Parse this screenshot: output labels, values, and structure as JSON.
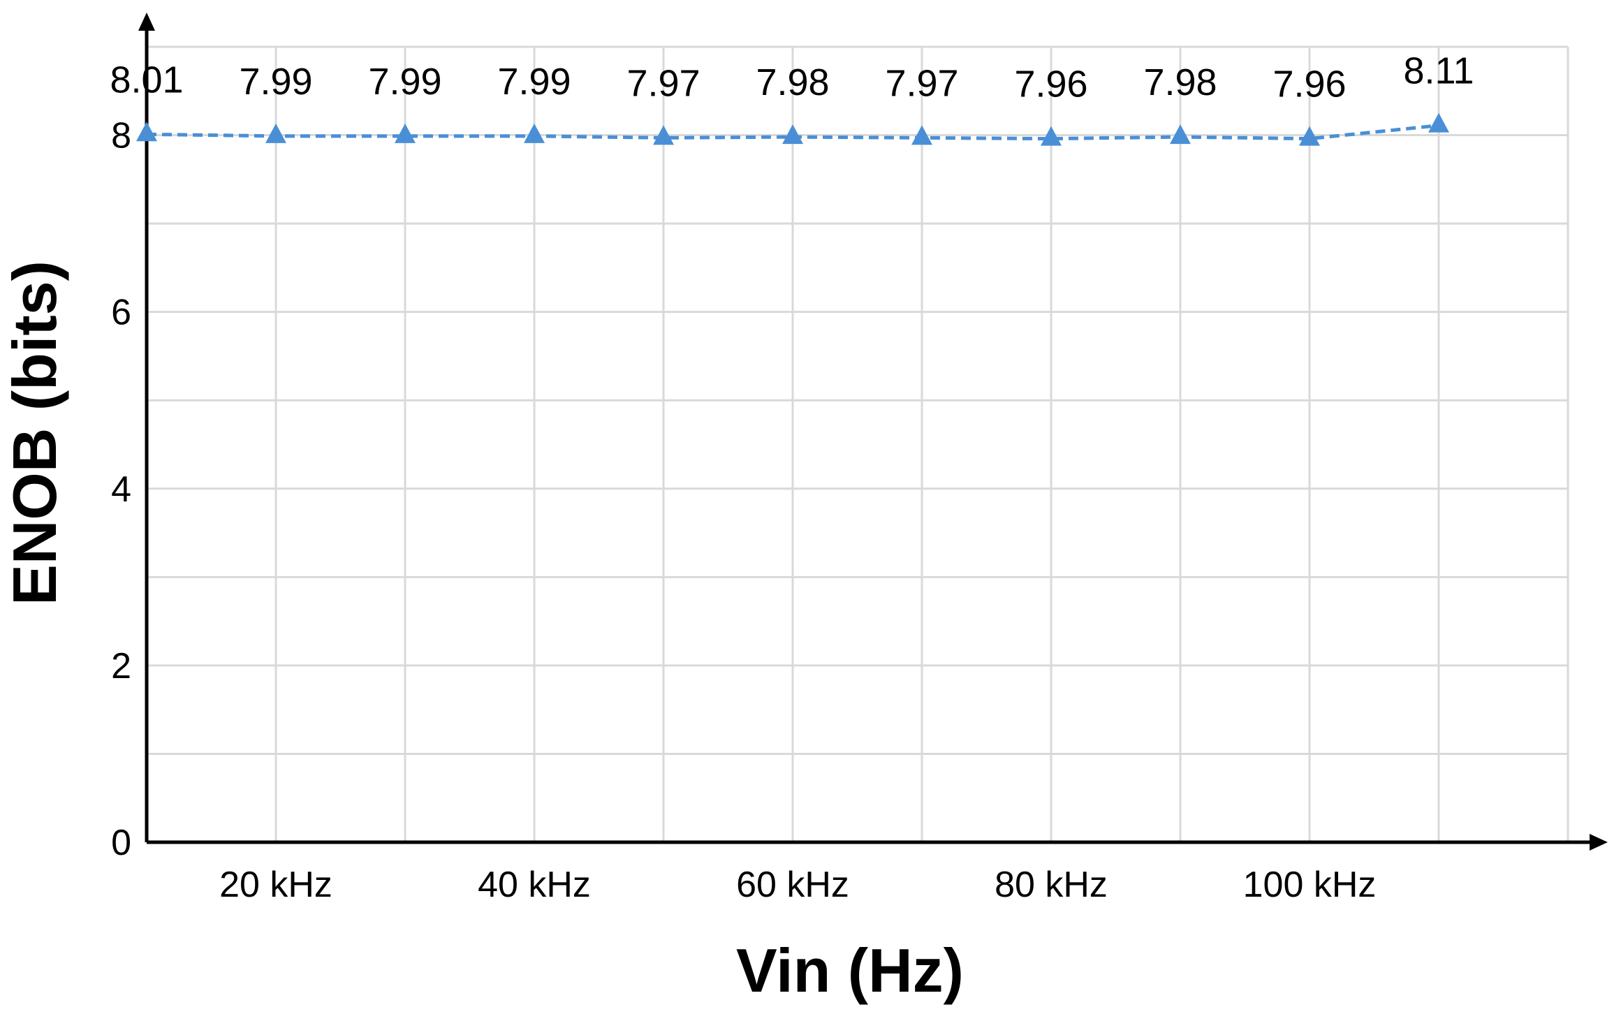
{
  "chart_data": {
    "type": "line",
    "x_label": "Vin (Hz)",
    "y_label": "ENOB (bits)",
    "x": [
      10000,
      20000,
      30000,
      40000,
      50000,
      60000,
      70000,
      80000,
      90000,
      100000,
      110000
    ],
    "series": [
      {
        "color": "#4a8fd6",
        "values": [
          8.01,
          7.99,
          7.99,
          7.99,
          7.97,
          7.98,
          7.97,
          7.96,
          7.98,
          7.96,
          8.11
        ]
      }
    ],
    "xlim": [
      10000,
      120000
    ],
    "xticks": [
      {
        "value": 20000,
        "label": "20 kHz"
      },
      {
        "value": 40000,
        "label": "40 kHz"
      },
      {
        "value": 60000,
        "label": "60 kHz"
      },
      {
        "value": 80000,
        "label": "80 kHz"
      },
      {
        "value": 100000,
        "label": "100 kHz"
      }
    ],
    "x_minor_grid": [
      30000,
      50000,
      70000,
      90000,
      110000,
      120000
    ],
    "ylim": [
      0,
      9
    ],
    "yticks": [
      0,
      2,
      4,
      6,
      8
    ],
    "y_minor_grid": [
      1,
      3,
      5,
      7,
      9
    ],
    "grid": true,
    "line_style": "dashed",
    "marker": "triangle",
    "data_labels": true
  }
}
